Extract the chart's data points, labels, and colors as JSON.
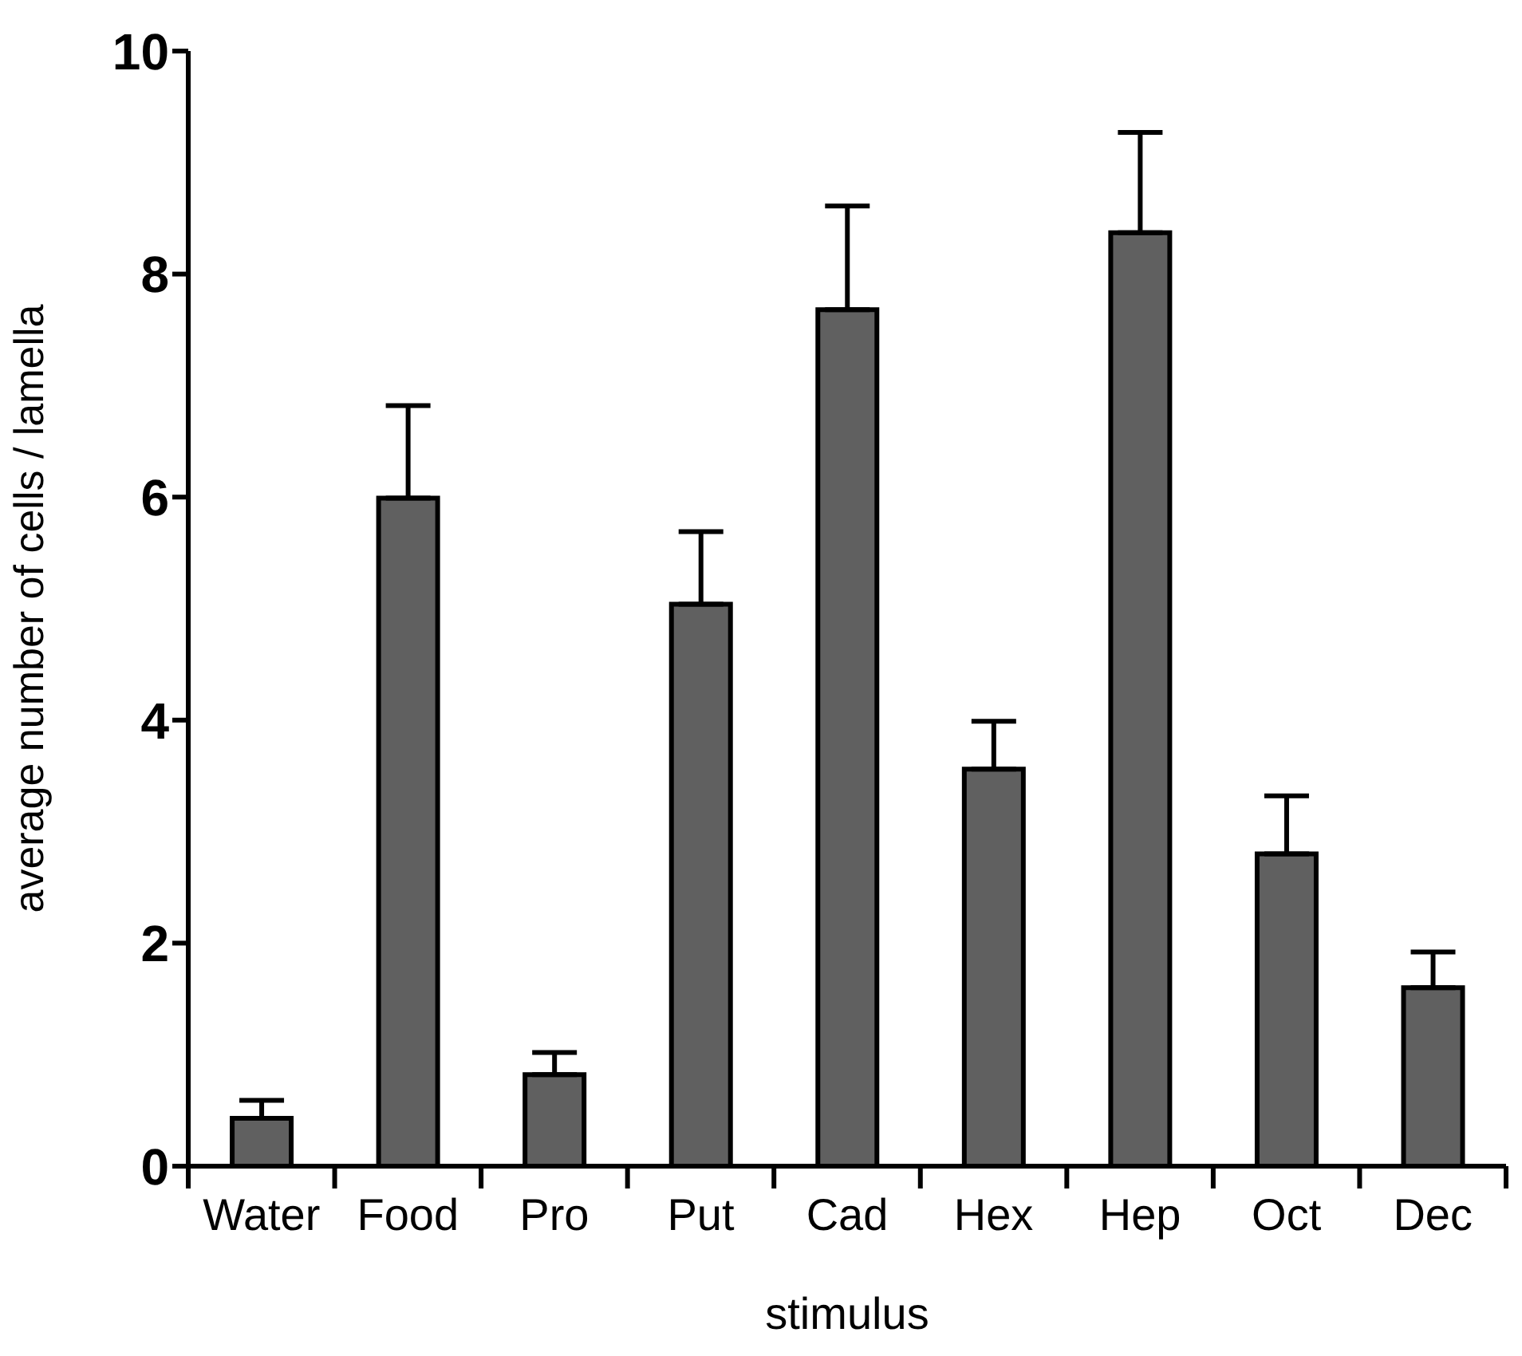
{
  "chart_data": {
    "type": "bar",
    "xlabel": "stimulus",
    "ylabel": "average number of cells / lamella",
    "categories": [
      "Water",
      "Food",
      "Pro",
      "Put",
      "Cad",
      "Hex",
      "Hep",
      "Oct",
      "Dec"
    ],
    "values": [
      0.43,
      5.99,
      0.82,
      5.04,
      7.68,
      3.56,
      8.37,
      2.8,
      1.6
    ],
    "errors": [
      [
        0.43,
        0.59
      ],
      [
        5.99,
        6.82
      ],
      [
        0.82,
        1.02
      ],
      [
        5.04,
        5.69
      ],
      [
        7.68,
        8.61
      ],
      [
        3.56,
        3.99
      ],
      [
        8.37,
        9.27
      ],
      [
        2.8,
        3.32
      ],
      [
        1.6,
        1.92
      ]
    ],
    "color": "#606060",
    "ylim": [
      0,
      10
    ],
    "yticks": [
      0,
      2,
      4,
      6,
      8,
      10
    ],
    "grid": false,
    "legend": false
  }
}
